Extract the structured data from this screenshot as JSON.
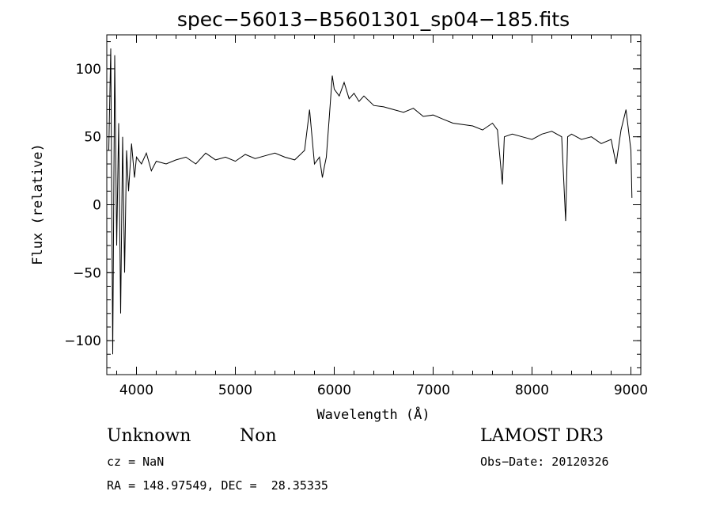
{
  "chart_data": {
    "type": "line",
    "title": "spec−56013−B5601301_sp04−185.fits",
    "xlabel": "Wavelength (Å)",
    "ylabel": "Flux (relative)",
    "xlim": [
      3700,
      9100
    ],
    "ylim": [
      -125,
      125
    ],
    "x_ticks": [
      4000,
      5000,
      6000,
      7000,
      8000,
      9000
    ],
    "x_tick_labels": [
      "4000",
      "5000",
      "6000",
      "7000",
      "8000",
      "9000"
    ],
    "y_ticks": [
      -100,
      -50,
      0,
      50,
      100
    ],
    "y_tick_labels": [
      "−100",
      "−50",
      "0",
      "50",
      "100"
    ],
    "x_minor_step": 200,
    "y_minor_step": 10,
    "grid": false,
    "series": [
      {
        "x": [
          3720,
          3740,
          3760,
          3780,
          3800,
          3820,
          3840,
          3860,
          3880,
          3900,
          3920,
          3950,
          3980,
          4000,
          4050,
          4100,
          4150,
          4200,
          4300,
          4400,
          4500,
          4600,
          4700,
          4800,
          4900,
          5000,
          5100,
          5200,
          5300,
          5400,
          5500,
          5600,
          5700,
          5750,
          5800,
          5850,
          5880,
          5900,
          5920,
          5950,
          5980,
          6000,
          6050,
          6100,
          6150,
          6200,
          6250,
          6300,
          6400,
          6500,
          6600,
          6700,
          6800,
          6900,
          7000,
          7100,
          7200,
          7300,
          7400,
          7500,
          7600,
          7650,
          7700,
          7720,
          7800,
          7900,
          8000,
          8100,
          8200,
          8300,
          8340,
          8360,
          8400,
          8500,
          8600,
          8700,
          8800,
          8850,
          8900,
          8950,
          9000,
          9010
        ],
        "y": [
          40,
          115,
          -110,
          110,
          -30,
          60,
          -80,
          50,
          -50,
          40,
          10,
          45,
          20,
          35,
          30,
          38,
          25,
          32,
          30,
          33,
          35,
          30,
          38,
          33,
          35,
          32,
          37,
          34,
          36,
          38,
          35,
          33,
          40,
          70,
          30,
          35,
          20,
          28,
          35,
          65,
          95,
          85,
          80,
          90,
          78,
          82,
          76,
          80,
          73,
          72,
          70,
          68,
          71,
          65,
          66,
          63,
          60,
          59,
          58,
          55,
          60,
          55,
          15,
          50,
          52,
          50,
          48,
          52,
          54,
          50,
          -12,
          50,
          52,
          48,
          50,
          45,
          48,
          30,
          55,
          70,
          40,
          5
        ]
      }
    ]
  },
  "info": {
    "object_class": "Unknown",
    "subclass": "Non",
    "survey": "LAMOST DR3",
    "cz_line": "cz = NaN",
    "obs_date_line": "Obs−Date: 20120326",
    "coords_line": "RA = 148.97549, DEC =  28.35335"
  }
}
